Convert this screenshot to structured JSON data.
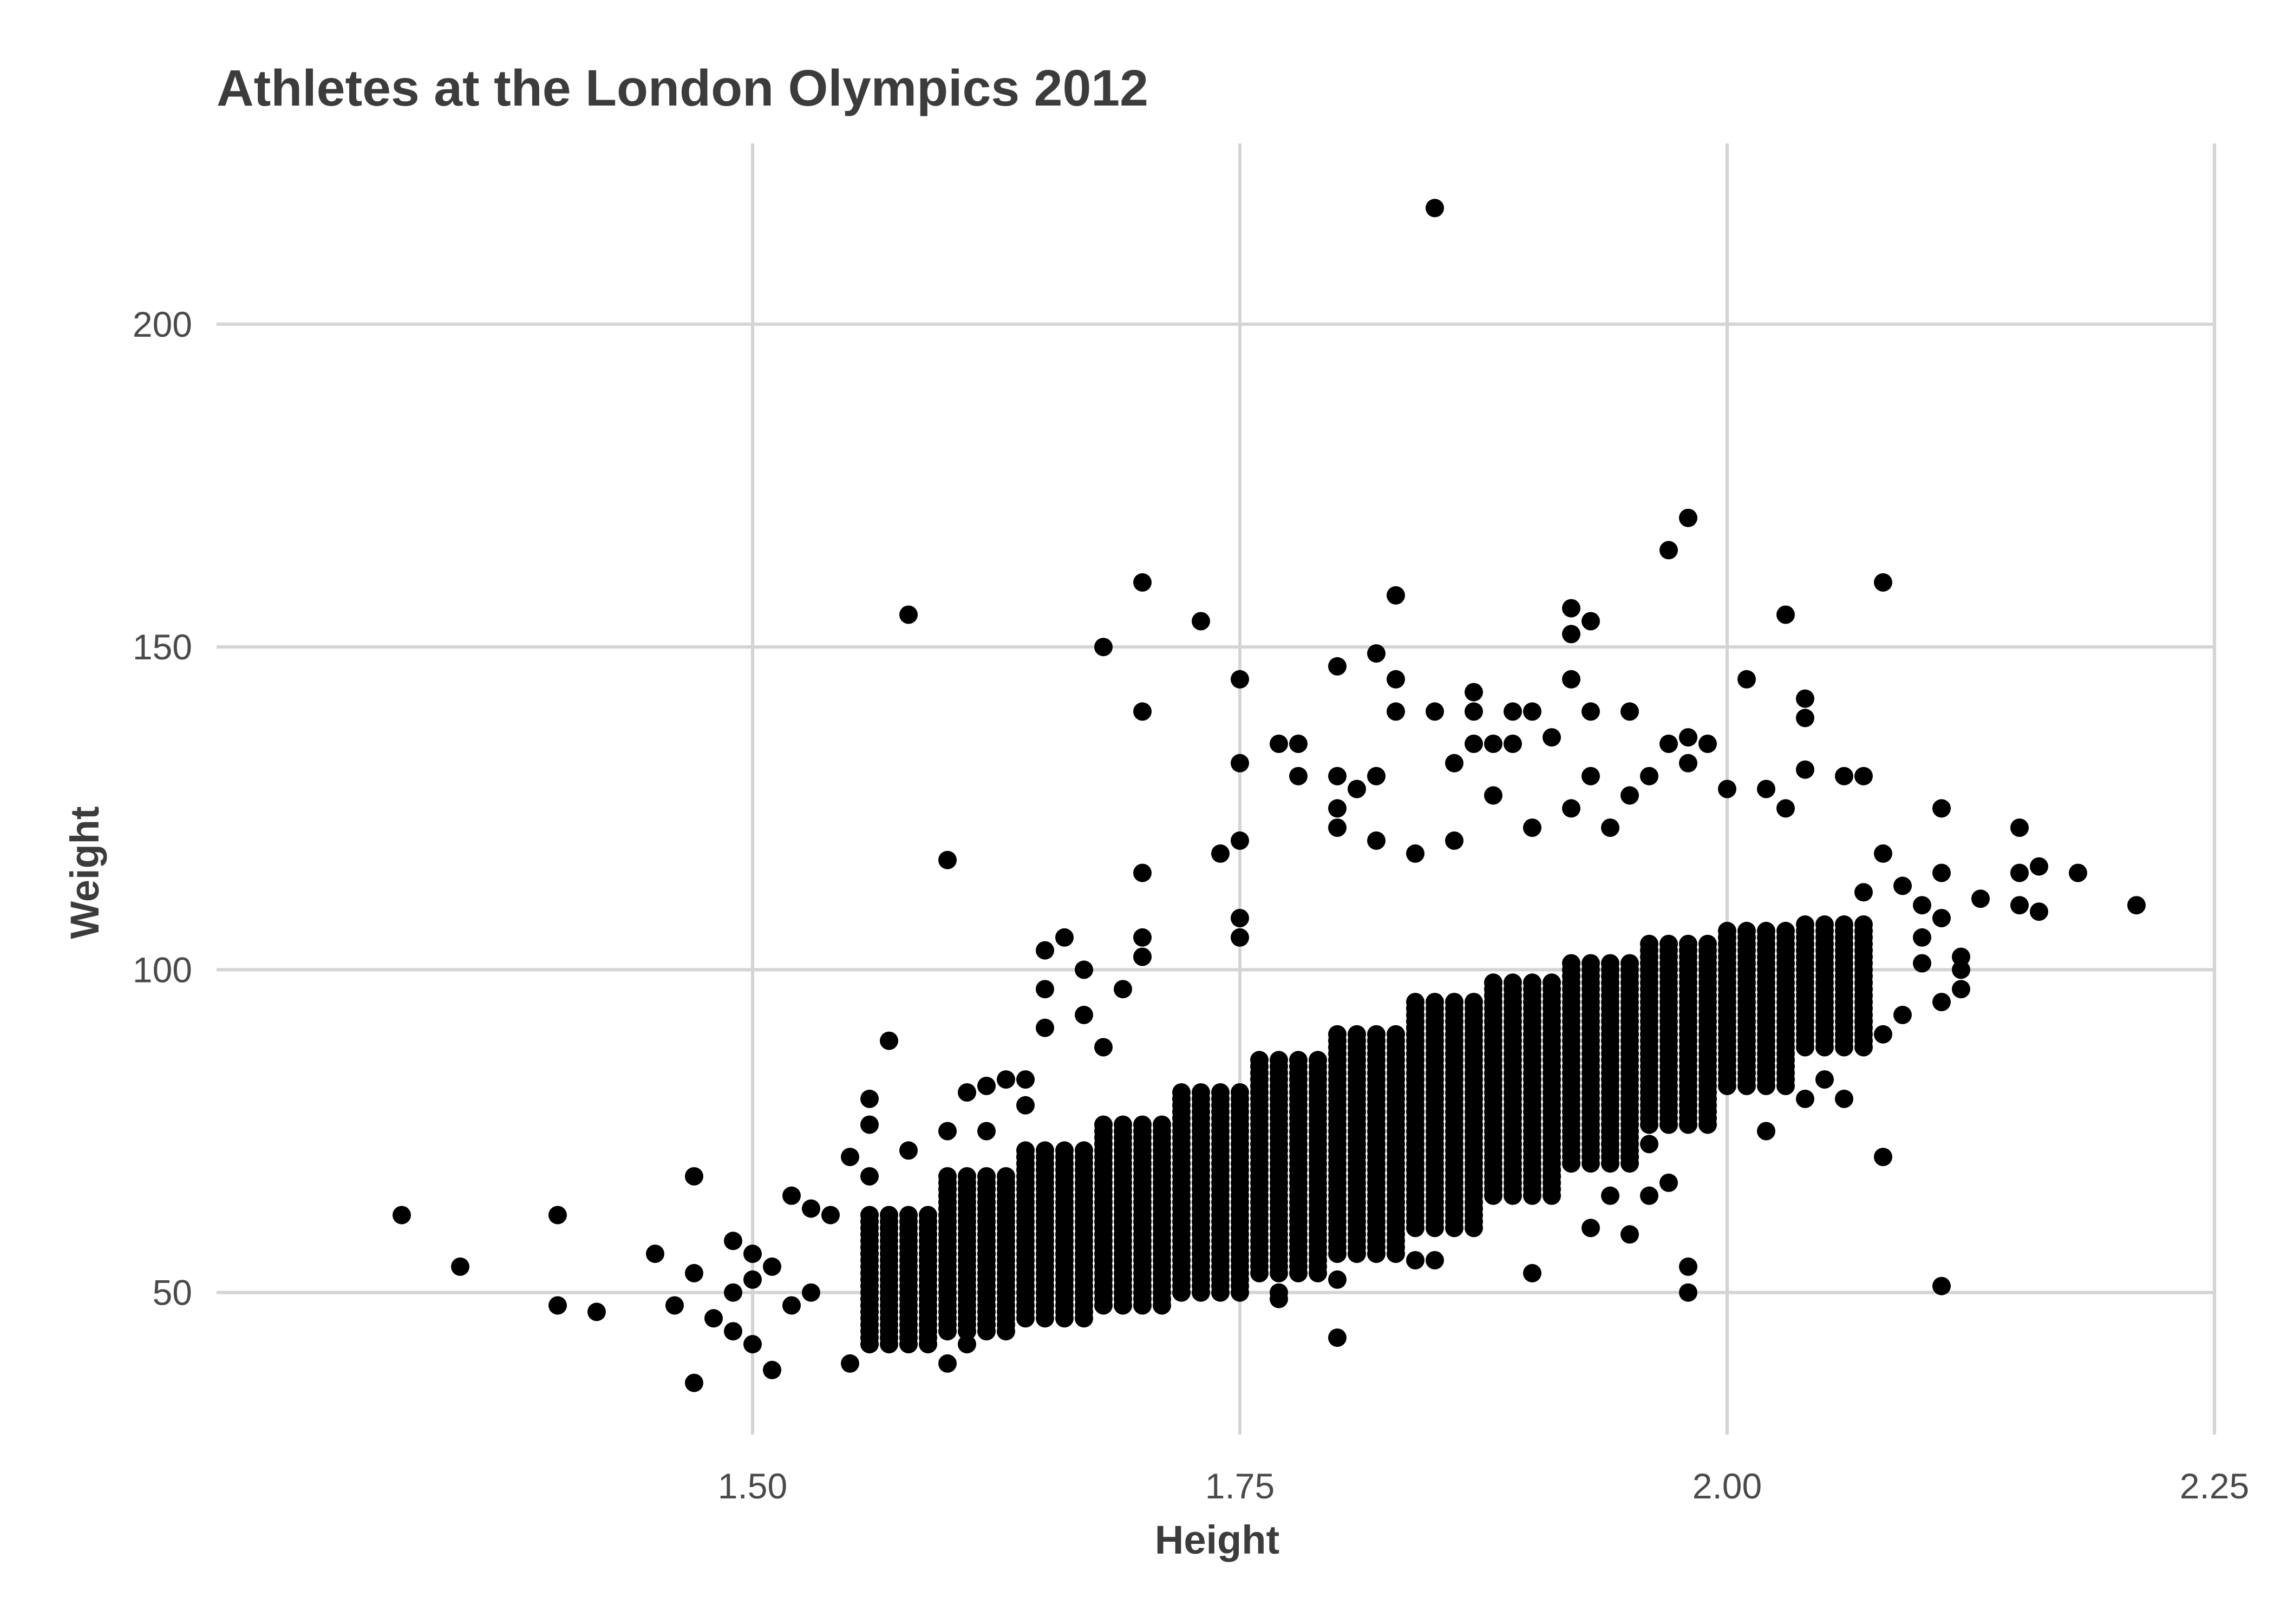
{
  "chart_data": {
    "type": "scatter",
    "title": "Athletes at the London Olympics 2012",
    "xlabel": "Height",
    "ylabel": "Weight",
    "xlim": [
      1.225,
      2.25
    ],
    "ylim": [
      28,
      228
    ],
    "x_ticks": [
      1.5,
      1.75,
      2.0,
      2.25
    ],
    "x_tick_labels": [
      "1.50",
      "1.75",
      "2.00",
      "2.25"
    ],
    "y_ticks": [
      50,
      100,
      150,
      200
    ],
    "y_tick_labels": [
      "50",
      "100",
      "150",
      "200"
    ],
    "grid": true,
    "point_color": "#000000",
    "grid_color": "#d4d4d4",
    "points": [
      [
        1.85,
        218
      ],
      [
        1.98,
        170
      ],
      [
        1.97,
        165
      ],
      [
        2.08,
        160
      ],
      [
        1.7,
        160
      ],
      [
        1.83,
        158
      ],
      [
        1.92,
        156
      ],
      [
        2.03,
        155
      ],
      [
        1.58,
        155
      ],
      [
        1.73,
        154
      ],
      [
        1.93,
        154
      ],
      [
        1.92,
        152
      ],
      [
        1.68,
        150
      ],
      [
        1.82,
        149
      ],
      [
        1.8,
        147
      ],
      [
        1.75,
        145
      ],
      [
        1.83,
        145
      ],
      [
        1.92,
        145
      ],
      [
        2.01,
        145
      ],
      [
        1.87,
        143
      ],
      [
        2.04,
        142
      ],
      [
        1.7,
        140
      ],
      [
        1.83,
        140
      ],
      [
        1.85,
        140
      ],
      [
        1.87,
        140
      ],
      [
        1.89,
        140
      ],
      [
        1.9,
        140
      ],
      [
        1.93,
        140
      ],
      [
        1.95,
        140
      ],
      [
        2.04,
        139
      ],
      [
        1.91,
        136
      ],
      [
        1.98,
        136
      ],
      [
        1.77,
        135
      ],
      [
        1.78,
        135
      ],
      [
        1.87,
        135
      ],
      [
        1.88,
        135
      ],
      [
        1.89,
        135
      ],
      [
        1.97,
        135
      ],
      [
        1.99,
        135
      ],
      [
        1.75,
        132
      ],
      [
        1.86,
        132
      ],
      [
        1.98,
        132
      ],
      [
        2.04,
        131
      ],
      [
        1.78,
        130
      ],
      [
        1.8,
        130
      ],
      [
        1.82,
        130
      ],
      [
        1.93,
        130
      ],
      [
        1.96,
        130
      ],
      [
        2.06,
        130
      ],
      [
        2.07,
        130
      ],
      [
        1.81,
        128
      ],
      [
        2.0,
        128
      ],
      [
        2.02,
        128
      ],
      [
        1.88,
        127
      ],
      [
        1.95,
        127
      ],
      [
        1.8,
        125
      ],
      [
        1.92,
        125
      ],
      [
        2.03,
        125
      ],
      [
        2.11,
        125
      ],
      [
        1.84,
        118
      ],
      [
        1.74,
        118
      ],
      [
        1.75,
        120
      ],
      [
        1.8,
        122
      ],
      [
        1.82,
        120
      ],
      [
        1.86,
        120
      ],
      [
        1.9,
        122
      ],
      [
        1.94,
        122
      ],
      [
        2.15,
        122
      ],
      [
        2.08,
        118
      ],
      [
        2.15,
        115
      ],
      [
        2.16,
        116
      ],
      [
        2.18,
        115
      ],
      [
        2.21,
        110
      ],
      [
        2.15,
        110
      ],
      [
        2.16,
        109
      ],
      [
        2.13,
        111
      ],
      [
        2.11,
        115
      ],
      [
        2.1,
        110
      ],
      [
        2.09,
        113
      ],
      [
        2.07,
        112
      ],
      [
        1.6,
        117
      ],
      [
        1.7,
        115
      ],
      [
        1.7,
        105
      ],
      [
        1.7,
        102
      ],
      [
        1.75,
        108
      ],
      [
        1.75,
        105
      ],
      [
        1.66,
        105
      ],
      [
        1.65,
        103
      ],
      [
        1.67,
        100
      ],
      [
        1.69,
        97
      ],
      [
        1.65,
        97
      ],
      [
        1.67,
        93
      ],
      [
        1.65,
        91
      ],
      [
        1.68,
        88
      ],
      [
        1.57,
        89
      ],
      [
        1.56,
        80
      ],
      [
        1.56,
        76
      ],
      [
        1.55,
        71
      ],
      [
        1.56,
        68
      ],
      [
        1.58,
        72
      ],
      [
        1.47,
        68
      ],
      [
        1.45,
        56
      ],
      [
        1.32,
        62
      ],
      [
        1.35,
        54
      ],
      [
        1.4,
        62
      ],
      [
        1.4,
        48
      ],
      [
        1.42,
        47
      ],
      [
        1.47,
        36
      ],
      [
        1.51,
        38
      ],
      [
        1.55,
        39
      ],
      [
        1.47,
        53
      ],
      [
        1.46,
        48
      ],
      [
        1.48,
        46
      ],
      [
        1.49,
        44
      ],
      [
        1.5,
        42
      ],
      [
        1.5,
        56
      ],
      [
        1.49,
        58
      ],
      [
        1.51,
        54
      ],
      [
        1.52,
        65
      ],
      [
        1.53,
        63
      ],
      [
        1.54,
        62
      ],
      [
        1.53,
        50
      ],
      [
        1.52,
        48
      ],
      [
        1.5,
        52
      ],
      [
        1.49,
        50
      ],
      [
        1.6,
        39
      ],
      [
        1.6,
        75
      ],
      [
        1.61,
        81
      ],
      [
        1.62,
        82
      ],
      [
        1.63,
        83
      ],
      [
        1.64,
        83
      ],
      [
        1.64,
        79
      ],
      [
        1.62,
        75
      ],
      [
        1.61,
        42
      ],
      [
        1.62,
        45
      ],
      [
        1.8,
        43
      ],
      [
        1.77,
        49
      ],
      [
        1.77,
        50
      ],
      [
        1.8,
        52
      ],
      [
        1.84,
        55
      ],
      [
        1.85,
        55
      ],
      [
        1.9,
        53
      ],
      [
        1.98,
        54
      ],
      [
        1.98,
        50
      ],
      [
        2.11,
        51
      ],
      [
        2.08,
        71
      ],
      [
        2.02,
        75
      ],
      [
        2.04,
        80
      ],
      [
        2.06,
        80
      ],
      [
        2.05,
        83
      ],
      [
        2.07,
        92
      ],
      [
        2.08,
        90
      ],
      [
        2.09,
        93
      ],
      [
        2.1,
        101
      ],
      [
        2.11,
        95
      ],
      [
        2.12,
        102
      ],
      [
        2.12,
        100
      ],
      [
        2.12,
        97
      ],
      [
        2.1,
        105
      ],
      [
        2.11,
        108
      ],
      [
        1.95,
        59
      ],
      [
        1.93,
        60
      ],
      [
        1.96,
        65
      ],
      [
        1.97,
        67
      ],
      [
        1.94,
        65
      ],
      [
        1.91,
        68
      ],
      [
        1.92,
        70
      ],
      [
        1.95,
        71
      ],
      [
        1.96,
        73
      ],
      [
        1.97,
        76
      ]
    ],
    "density_bands": [
      {
        "x0": 1.56,
        "x1": 1.6,
        "y_lo": 42,
        "y_hi": 62
      },
      {
        "x0": 1.6,
        "x1": 1.64,
        "y_lo": 44,
        "y_hi": 68
      },
      {
        "x0": 1.64,
        "x1": 1.68,
        "y_lo": 46,
        "y_hi": 72
      },
      {
        "x0": 1.68,
        "x1": 1.72,
        "y_lo": 48,
        "y_hi": 76
      },
      {
        "x0": 1.72,
        "x1": 1.76,
        "y_lo": 50,
        "y_hi": 81
      },
      {
        "x0": 1.76,
        "x1": 1.8,
        "y_lo": 53,
        "y_hi": 86
      },
      {
        "x0": 1.8,
        "x1": 1.84,
        "y_lo": 56,
        "y_hi": 90
      },
      {
        "x0": 1.84,
        "x1": 1.88,
        "y_lo": 60,
        "y_hi": 95
      },
      {
        "x0": 1.88,
        "x1": 1.92,
        "y_lo": 65,
        "y_hi": 98
      },
      {
        "x0": 1.92,
        "x1": 1.96,
        "y_lo": 70,
        "y_hi": 101
      },
      {
        "x0": 1.96,
        "x1": 2.0,
        "y_lo": 76,
        "y_hi": 104
      },
      {
        "x0": 2.0,
        "x1": 2.04,
        "y_lo": 82,
        "y_hi": 106
      },
      {
        "x0": 2.04,
        "x1": 2.08,
        "y_lo": 88,
        "y_hi": 107
      }
    ]
  }
}
